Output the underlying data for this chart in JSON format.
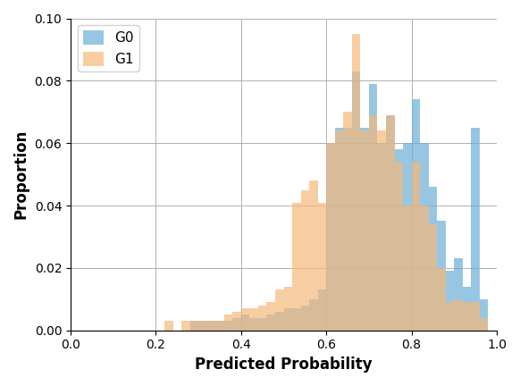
{
  "xlabel": "Predicted Probability",
  "ylabel": "Proportion",
  "xlim": [
    0.0,
    1.0
  ],
  "ylim": [
    0.0,
    0.1
  ],
  "bin_width": 0.02,
  "color_g0": "#6aaed6",
  "color_g1": "#f5b87a",
  "alpha_g0": 0.7,
  "alpha_g1": 0.7,
  "g0_bin_heights": [
    0.0,
    0.0,
    0.0,
    0.0,
    0.0,
    0.0,
    0.0,
    0.0,
    0.0,
    0.0,
    0.0,
    0.0,
    0.0,
    0.0,
    0.003,
    0.003,
    0.003,
    0.003,
    0.003,
    0.004,
    0.005,
    0.004,
    0.004,
    0.005,
    0.006,
    0.007,
    0.007,
    0.008,
    0.01,
    0.013,
    0.06,
    0.065,
    0.065,
    0.083,
    0.065,
    0.079,
    0.06,
    0.069,
    0.058,
    0.06,
    0.074,
    0.06,
    0.046,
    0.035,
    0.019,
    0.023,
    0.014,
    0.065,
    0.01,
    0.0
  ],
  "g1_bin_heights": [
    0.0,
    0.0,
    0.0,
    0.0,
    0.0,
    0.0,
    0.0,
    0.0,
    0.0,
    0.0,
    0.0,
    0.003,
    0.0,
    0.003,
    0.003,
    0.003,
    0.003,
    0.003,
    0.005,
    0.006,
    0.007,
    0.007,
    0.008,
    0.009,
    0.013,
    0.014,
    0.041,
    0.045,
    0.048,
    0.041,
    0.06,
    0.064,
    0.07,
    0.095,
    0.064,
    0.069,
    0.064,
    0.069,
    0.054,
    0.04,
    0.054,
    0.04,
    0.034,
    0.02,
    0.009,
    0.01,
    0.009,
    0.009,
    0.004,
    0.0
  ]
}
